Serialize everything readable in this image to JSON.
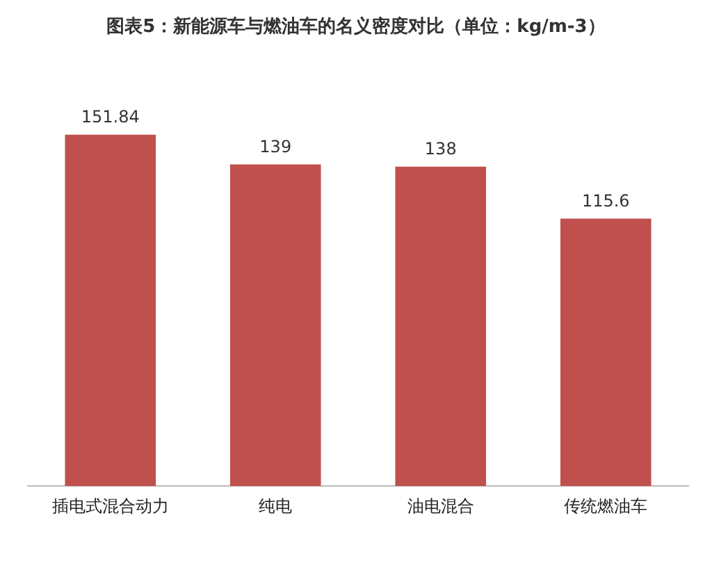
{
  "chart_data": {
    "type": "bar",
    "title": "图表5：新能源车与燃油车的名义密度对比（单位：kg/m-3）",
    "categories": [
      "插电式混合动力",
      "纯电",
      "油电混合",
      "传统燃油车"
    ],
    "values": [
      151.84,
      139,
      138,
      115.6
    ],
    "color": "#c0504d",
    "data_labels": true,
    "grid": false,
    "legend": false
  }
}
